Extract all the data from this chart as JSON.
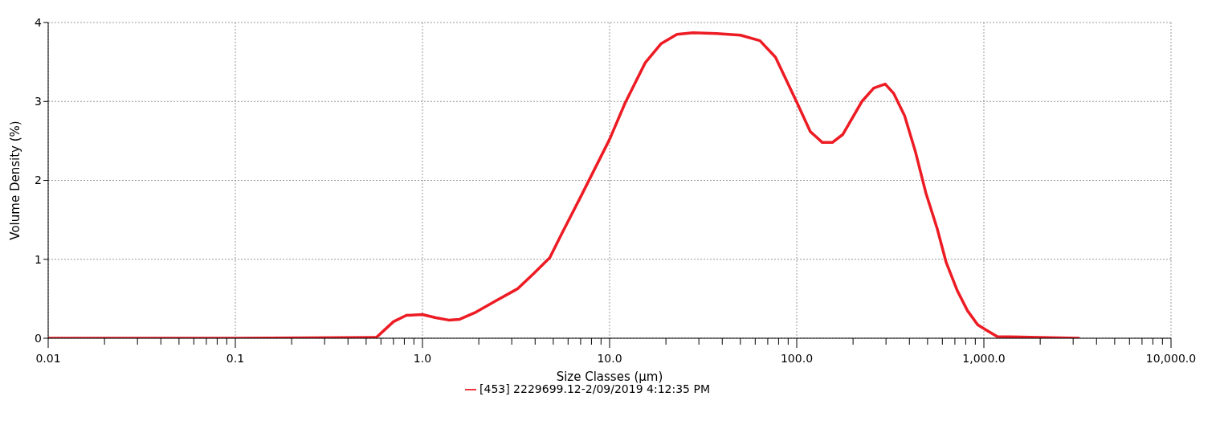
{
  "chart_data": {
    "type": "line",
    "xlabel": "Size Classes (µm)",
    "ylabel": "Volume Density (%)",
    "x": [
      0.01,
      0.1,
      0.556,
      0.567,
      0.7,
      0.82,
      1.0,
      1.18,
      1.38,
      1.58,
      1.93,
      2.41,
      3.24,
      3.93,
      4.79,
      5.54,
      7.07,
      10,
      12.1,
      15.5,
      18.8,
      22.9,
      27.9,
      37.3,
      50,
      63.6,
      77,
      99.6,
      118,
      137,
      155,
      176,
      223,
      258,
      297,
      330,
      377,
      430,
      490,
      563,
      629,
      722,
      817,
      927,
      1020,
      1180,
      3250
    ],
    "series": [
      {
        "name": "[453] 2229699.12-2/09/2019 4:12:35 PM",
        "color": "#ed1c24",
        "values": [
          0,
          0,
          0.01,
          0.01,
          0.21,
          0.29,
          0.3,
          0.26,
          0.23,
          0.24,
          0.33,
          0.46,
          0.63,
          0.82,
          1.02,
          1.32,
          1.81,
          2.52,
          2.98,
          3.49,
          3.73,
          3.85,
          3.87,
          3.86,
          3.84,
          3.77,
          3.56,
          3.0,
          2.62,
          2.48,
          2.48,
          2.58,
          3.0,
          3.17,
          3.22,
          3.1,
          2.82,
          2.37,
          1.84,
          1.39,
          0.96,
          0.6,
          0.35,
          0.17,
          0.11,
          0.02,
          0
        ]
      }
    ],
    "xlim": [
      0.01,
      10000
    ],
    "ylim": [
      0,
      4
    ],
    "xticks": [
      {
        "value": 0.01,
        "label": "0.01"
      },
      {
        "value": 0.02,
        "label": null
      },
      {
        "value": 0.03,
        "label": null
      },
      {
        "value": 0.04,
        "label": null
      },
      {
        "value": 0.05,
        "label": null
      },
      {
        "value": 0.06,
        "label": null
      },
      {
        "value": 0.07,
        "label": null
      },
      {
        "value": 0.08,
        "label": null
      },
      {
        "value": 0.09,
        "label": null
      },
      {
        "value": 0.1,
        "label": "0.1"
      },
      {
        "value": 0.2,
        "label": null
      },
      {
        "value": 0.3,
        "label": null
      },
      {
        "value": 0.4,
        "label": null
      },
      {
        "value": 0.5,
        "label": null
      },
      {
        "value": 0.6,
        "label": null
      },
      {
        "value": 0.7,
        "label": null
      },
      {
        "value": 0.8,
        "label": null
      },
      {
        "value": 0.9,
        "label": null
      },
      {
        "value": 1,
        "label": "1.0"
      },
      {
        "value": 2,
        "label": null
      },
      {
        "value": 3,
        "label": null
      },
      {
        "value": 4,
        "label": null
      },
      {
        "value": 5,
        "label": null
      },
      {
        "value": 6,
        "label": null
      },
      {
        "value": 7,
        "label": null
      },
      {
        "value": 8,
        "label": null
      },
      {
        "value": 9,
        "label": null
      },
      {
        "value": 10,
        "label": "10.0"
      },
      {
        "value": 20,
        "label": null
      },
      {
        "value": 30,
        "label": null
      },
      {
        "value": 40,
        "label": null
      },
      {
        "value": 50,
        "label": null
      },
      {
        "value": 60,
        "label": null
      },
      {
        "value": 70,
        "label": null
      },
      {
        "value": 80,
        "label": null
      },
      {
        "value": 90,
        "label": null
      },
      {
        "value": 100,
        "label": "100.0"
      },
      {
        "value": 200,
        "label": null
      },
      {
        "value": 300,
        "label": null
      },
      {
        "value": 400,
        "label": null
      },
      {
        "value": 500,
        "label": null
      },
      {
        "value": 600,
        "label": null
      },
      {
        "value": 700,
        "label": null
      },
      {
        "value": 800,
        "label": null
      },
      {
        "value": 900,
        "label": null
      },
      {
        "value": 1000,
        "label": "1,000.0"
      },
      {
        "value": 2000,
        "label": null
      },
      {
        "value": 3000,
        "label": null
      },
      {
        "value": 4000,
        "label": null
      },
      {
        "value": 5000,
        "label": null
      },
      {
        "value": 6000,
        "label": null
      },
      {
        "value": 7000,
        "label": null
      },
      {
        "value": 8000,
        "label": null
      },
      {
        "value": 9000,
        "label": null
      },
      {
        "value": 10000,
        "label": "10,000.0"
      }
    ],
    "yticks": [
      0,
      1,
      2,
      3,
      4
    ],
    "log": "x",
    "grid": true,
    "legend": "bottom",
    "marker": "none",
    "line_style": "solid"
  }
}
